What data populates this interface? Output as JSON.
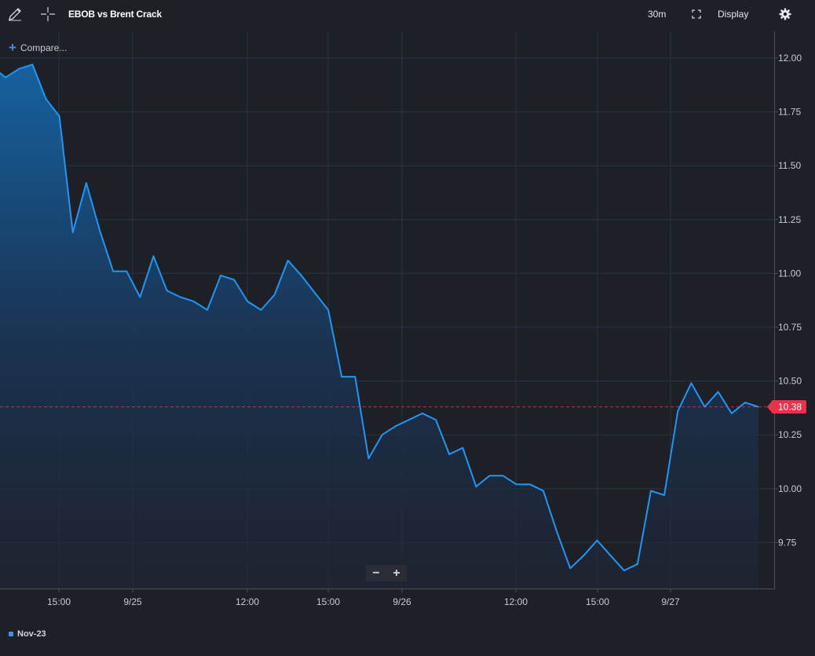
{
  "toolbar": {
    "title": "EBOB vs Brent Crack",
    "interval": "30m",
    "display_label": "Display"
  },
  "compare_label": "Compare...",
  "legend": {
    "label": "Nov-23",
    "color": "#3a8ff0"
  },
  "last_price": {
    "label": "10.38",
    "color": "#e8334a"
  },
  "colors": {
    "line": "#2196f3",
    "grid": "#2a3442",
    "background": "#1e2028"
  },
  "chart_data": {
    "type": "area",
    "title": "EBOB vs Brent Crack",
    "series": [
      {
        "name": "Nov-23",
        "values": [
          11.96,
          11.91,
          11.95,
          11.97,
          11.81,
          11.73,
          11.19,
          11.42,
          11.2,
          11.01,
          11.01,
          10.89,
          11.08,
          10.92,
          10.89,
          10.87,
          10.83,
          10.99,
          10.97,
          10.87,
          10.83,
          10.9,
          11.06,
          10.99,
          10.91,
          10.83,
          10.52,
          10.52,
          10.14,
          10.25,
          10.29,
          10.32,
          10.35,
          10.32,
          10.16,
          10.19,
          10.01,
          10.06,
          10.06,
          10.02,
          10.02,
          9.99,
          9.8,
          9.63,
          9.69,
          9.76,
          9.69,
          9.62,
          9.65,
          9.99,
          9.97,
          10.36,
          10.49,
          10.38,
          10.45,
          10.35,
          10.4,
          10.38
        ]
      }
    ],
    "x_ticks": [
      "15:00",
      "9/25",
      "12:00",
      "15:00",
      "9/26",
      "12:00",
      "15:00",
      "9/27"
    ],
    "y_ticks": [
      "12.00",
      "11.75",
      "11.50",
      "11.25",
      "11.00",
      "10.75",
      "10.50",
      "10.25",
      "10.00",
      "9.75"
    ],
    "ylim": [
      9.55,
      12.1
    ],
    "last_value": 10.38,
    "grid": true
  }
}
